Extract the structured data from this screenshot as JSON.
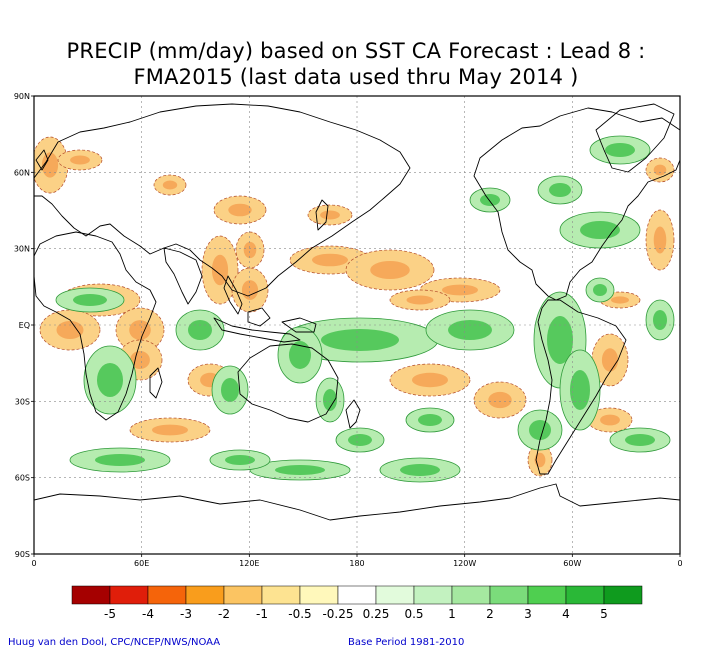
{
  "title": {
    "line1": "PRECIP (mm/day) based on SST CA Forecast : Lead 8 :",
    "line2": "FMA2015 (last data used thru May 2014 )"
  },
  "axes": {
    "y_ticks": [
      "90N",
      "60N",
      "30N",
      "EQ",
      "30S",
      "60S",
      "90S"
    ],
    "x_ticks": [
      "0",
      "60E",
      "120E",
      "180",
      "120W",
      "60W",
      "0"
    ]
  },
  "colorbar": {
    "labels": [
      "-5",
      "-4",
      "-3",
      "-2",
      "-1",
      "-0.5",
      "-0.25",
      "0.25",
      "0.5",
      "1",
      "2",
      "3",
      "4",
      "5"
    ],
    "colors": [
      "#a50000",
      "#e01e0a",
      "#f5640a",
      "#f99d1c",
      "#fbc462",
      "#fde391",
      "#fff8bb",
      "#ffffff",
      "#e2fbdc",
      "#c3f2c0",
      "#a5e8a0",
      "#7bdc7b",
      "#4fcf50",
      "#2ab837",
      "#0f9b1e"
    ]
  },
  "colors": {
    "dry_fill": "#fbd186",
    "dry_strong": "#f6a95a",
    "wet_fill": "#b6ecb0",
    "wet_strong": "#56c95d",
    "dry_contour": "#b24a2a",
    "wet_contour": "#2f9a3a",
    "coast": "#000000",
    "grid": "#8a8a8a"
  },
  "credits": {
    "left": "Huug van den Dool, CPC/NCEP/NWS/NOAA",
    "right": "Base Period 1981-2010"
  }
}
